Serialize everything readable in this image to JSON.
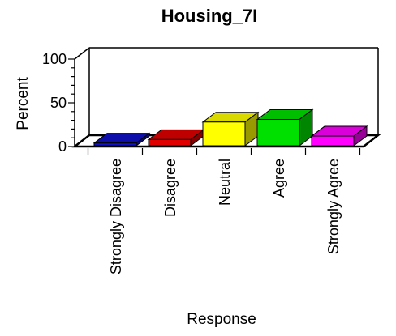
{
  "chart_data": {
    "type": "bar",
    "title": "Housing_7I",
    "xlabel": "Response",
    "ylabel": "Percent",
    "ylim": [
      0,
      100
    ],
    "yticks": [
      0,
      50,
      100
    ],
    "grid": false,
    "legend": "none",
    "style": "3d",
    "categories": [
      "Strongly Disagree",
      "Disagree",
      "Neutral",
      "Agree",
      "Strongly Agree"
    ],
    "values": [
      4,
      8,
      28,
      31,
      12
    ],
    "colors": [
      "#1010c8",
      "#e00000",
      "#ffff00",
      "#00e000",
      "#ff00ff"
    ]
  }
}
